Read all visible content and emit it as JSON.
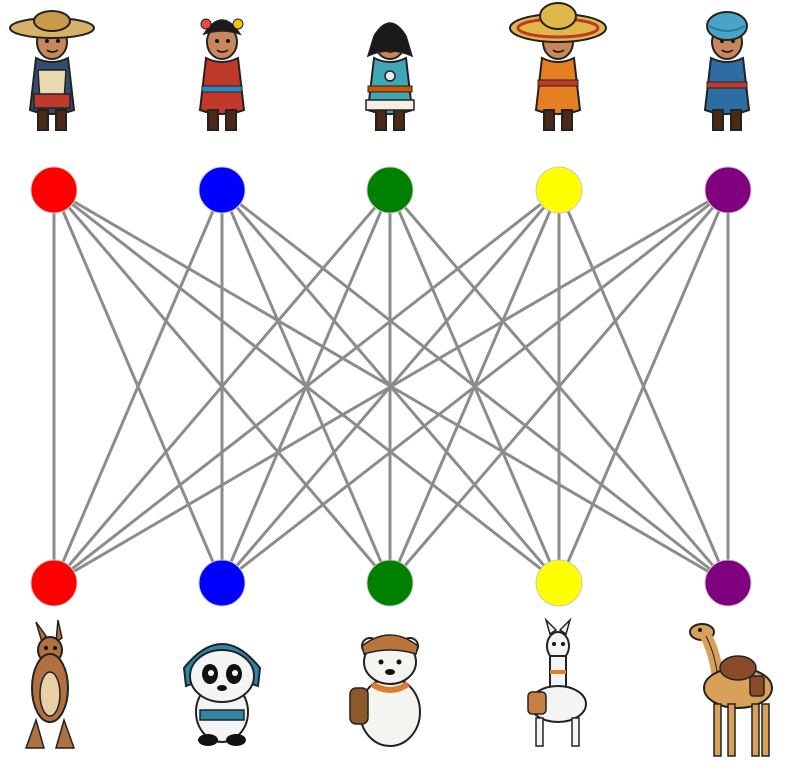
{
  "graph": {
    "edge_color": "#8c8c8c",
    "top_nodes": [
      {
        "id": "t1",
        "color": "#ff0000",
        "icon": "child-wide-brim-hat-vest-icon"
      },
      {
        "id": "t2",
        "color": "#0000ff",
        "icon": "child-red-traditional-dress-icon"
      },
      {
        "id": "t3",
        "color": "#008000",
        "icon": "child-blue-fur-trimmed-coat-icon"
      },
      {
        "id": "t4",
        "color": "#ffff00",
        "icon": "child-sombrero-icon"
      },
      {
        "id": "t5",
        "color": "#800080",
        "icon": "child-blue-turban-icon"
      }
    ],
    "bottom_nodes": [
      {
        "id": "b1",
        "color": "#ff0000",
        "icon": "kangaroo-icon"
      },
      {
        "id": "b2",
        "color": "#0000ff",
        "icon": "panda-icon"
      },
      {
        "id": "b3",
        "color": "#008000",
        "icon": "polar-bear-icon"
      },
      {
        "id": "b4",
        "color": "#ffff00",
        "icon": "llama-icon"
      },
      {
        "id": "b5",
        "color": "#800080",
        "icon": "camel-icon"
      }
    ],
    "edges": "complete-bipartite"
  }
}
